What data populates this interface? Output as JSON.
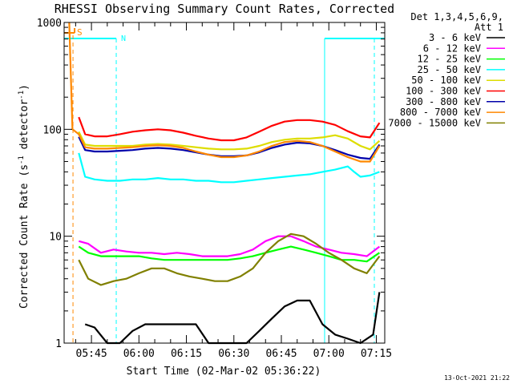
{
  "chart_data": {
    "type": "line",
    "title": "RHESSI Observing Summary Count Rates, Corrected",
    "xlabel": "Start Time (02-Mar-02 05:36:22)",
    "ylabel_main": "Corrected Count Rate (s",
    "ylabel_sup1": "-1",
    "ylabel_mid": " detector",
    "ylabel_sup2": "-1",
    "ylabel_end": ")",
    "yscale": "log",
    "ylim": [
      1,
      1000
    ],
    "y_ticks": [
      {
        "v": 1,
        "label": "1"
      },
      {
        "v": 10,
        "label": "10"
      },
      {
        "v": 100,
        "label": "100"
      },
      {
        "v": 1000,
        "label": "1000"
      }
    ],
    "xlim": [
      "05:36:22",
      "07:17:40"
    ],
    "x_ticks": [
      "05:45",
      "06:00",
      "06:15",
      "06:30",
      "06:45",
      "07:00",
      "07:15"
    ],
    "legend": {
      "position": "right",
      "header_line1": "Det 1,3,4,5,6,9,",
      "header_line2": "Att 1"
    },
    "annotations": {
      "saa_label": "S",
      "night_label": "N",
      "saa_end": "05:39:10",
      "night_intervals": [
        [
          "05:36:22",
          "05:52:50"
        ],
        [
          "06:58:40",
          "07:17:40"
        ]
      ]
    },
    "series": [
      {
        "name": "3 - 6 keV",
        "color": "#000000",
        "x": [
          "05:43",
          "05:46",
          "05:50",
          "05:54",
          "05:58",
          "06:02",
          "06:06",
          "06:10",
          "06:14",
          "06:18",
          "06:22",
          "06:26",
          "06:30",
          "06:34",
          "06:38",
          "06:42",
          "06:46",
          "06:50",
          "06:54",
          "06:58",
          "07:02",
          "07:06",
          "07:10",
          "07:14",
          "07:16"
        ],
        "y": [
          1.5,
          1.4,
          1.0,
          1.0,
          1.3,
          1.5,
          1.5,
          1.5,
          1.5,
          1.5,
          1.0,
          1.0,
          1.0,
          1.0,
          1.3,
          1.7,
          2.2,
          2.5,
          2.5,
          1.5,
          1.2,
          1.1,
          1.0,
          1.2,
          3.0
        ]
      },
      {
        "name": "6 - 12 keV",
        "color": "#ff00ff",
        "x": [
          "05:41",
          "05:44",
          "05:48",
          "05:52",
          "05:56",
          "06:00",
          "06:04",
          "06:08",
          "06:12",
          "06:16",
          "06:20",
          "06:24",
          "06:28",
          "06:32",
          "06:36",
          "06:40",
          "06:44",
          "06:48",
          "06:52",
          "06:56",
          "07:00",
          "07:04",
          "07:08",
          "07:12",
          "07:16"
        ],
        "y": [
          9.0,
          8.5,
          7.0,
          7.5,
          7.2,
          7.0,
          7.0,
          6.8,
          7.0,
          6.8,
          6.5,
          6.5,
          6.5,
          6.8,
          7.5,
          9.0,
          10.0,
          10.0,
          9.0,
          8.0,
          7.5,
          7.0,
          6.8,
          6.5,
          8.0
        ]
      },
      {
        "name": "12 - 25 keV",
        "color": "#00ff00",
        "x": [
          "05:41",
          "05:44",
          "05:48",
          "05:52",
          "05:56",
          "06:00",
          "06:04",
          "06:08",
          "06:12",
          "06:16",
          "06:20",
          "06:24",
          "06:28",
          "06:32",
          "06:36",
          "06:40",
          "06:44",
          "06:48",
          "06:52",
          "06:56",
          "07:00",
          "07:04",
          "07:08",
          "07:12",
          "07:16"
        ],
        "y": [
          8.0,
          7.0,
          6.5,
          6.5,
          6.5,
          6.5,
          6.2,
          6.0,
          6.0,
          6.0,
          6.0,
          6.0,
          6.0,
          6.2,
          6.5,
          7.0,
          7.5,
          8.0,
          7.5,
          7.0,
          6.5,
          6.0,
          6.0,
          5.8,
          7.0
        ]
      },
      {
        "name": "25 - 50 keV",
        "color": "#00ffff",
        "x": [
          "05:41",
          "05:43",
          "05:46",
          "05:50",
          "05:54",
          "05:58",
          "06:02",
          "06:06",
          "06:10",
          "06:14",
          "06:18",
          "06:22",
          "06:26",
          "06:30",
          "06:34",
          "06:38",
          "06:42",
          "06:46",
          "06:50",
          "06:54",
          "06:58",
          "07:02",
          "07:06",
          "07:08",
          "07:10",
          "07:13",
          "07:16"
        ],
        "y": [
          60,
          36,
          34,
          33,
          33,
          34,
          34,
          35,
          34,
          34,
          33,
          33,
          32,
          32,
          33,
          34,
          35,
          36,
          37,
          38,
          40,
          42,
          45,
          40,
          36,
          37,
          40
        ]
      },
      {
        "name": "50 - 100 keV",
        "color": "#dddd00",
        "x": [
          "05:41",
          "05:43",
          "05:46",
          "05:50",
          "05:54",
          "05:58",
          "06:02",
          "06:06",
          "06:10",
          "06:14",
          "06:18",
          "06:22",
          "06:26",
          "06:30",
          "06:34",
          "06:38",
          "06:42",
          "06:46",
          "06:50",
          "06:54",
          "06:58",
          "07:02",
          "07:06",
          "07:10",
          "07:13",
          "07:16"
        ],
        "y": [
          95,
          72,
          70,
          70,
          70,
          70,
          72,
          73,
          72,
          70,
          68,
          66,
          65,
          65,
          66,
          70,
          76,
          80,
          82,
          82,
          84,
          88,
          82,
          70,
          65,
          78
        ]
      },
      {
        "name": "100 - 300 keV",
        "color": "#ff0000",
        "x": [
          "05:41",
          "05:43",
          "05:46",
          "05:50",
          "05:54",
          "05:58",
          "06:02",
          "06:06",
          "06:10",
          "06:14",
          "06:18",
          "06:22",
          "06:26",
          "06:30",
          "06:34",
          "06:38",
          "06:42",
          "06:46",
          "06:50",
          "06:54",
          "06:58",
          "07:02",
          "07:06",
          "07:10",
          "07:13",
          "07:16"
        ],
        "y": [
          130,
          90,
          86,
          86,
          90,
          95,
          98,
          100,
          98,
          93,
          87,
          82,
          79,
          79,
          84,
          95,
          108,
          118,
          122,
          122,
          118,
          110,
          96,
          86,
          84,
          115
        ]
      },
      {
        "name": "300 - 800 keV",
        "color": "#0000aa",
        "x": [
          "05:41",
          "05:43",
          "05:46",
          "05:50",
          "05:54",
          "05:58",
          "06:02",
          "06:06",
          "06:10",
          "06:14",
          "06:18",
          "06:22",
          "06:26",
          "06:30",
          "06:34",
          "06:38",
          "06:42",
          "06:46",
          "06:50",
          "06:54",
          "06:58",
          "07:02",
          "07:06",
          "07:10",
          "07:13",
          "07:16"
        ],
        "y": [
          85,
          64,
          62,
          62,
          63,
          64,
          66,
          67,
          66,
          64,
          61,
          58,
          56,
          56,
          57,
          61,
          67,
          72,
          75,
          74,
          70,
          64,
          58,
          54,
          53,
          72
        ]
      },
      {
        "name": "800 - 7000 keV",
        "color": "#ff8800",
        "x": [
          "05:38",
          "05:39",
          "05:41",
          "05:43",
          "05:46",
          "05:50",
          "05:54",
          "05:58",
          "06:02",
          "06:06",
          "06:10",
          "06:14",
          "06:18",
          "06:22",
          "06:26",
          "06:30",
          "06:34",
          "06:38",
          "06:42",
          "06:46",
          "06:50",
          "06:54",
          "06:58",
          "07:02",
          "07:06",
          "07:10",
          "07:13",
          "07:16"
        ],
        "y": [
          1000,
          100,
          90,
          68,
          66,
          66,
          67,
          68,
          70,
          71,
          70,
          67,
          62,
          58,
          55,
          55,
          57,
          62,
          70,
          76,
          78,
          76,
          70,
          62,
          55,
          50,
          50,
          70
        ]
      },
      {
        "name": "7000 - 15000 keV",
        "color": "#808000",
        "x": [
          "05:41",
          "05:44",
          "05:48",
          "05:52",
          "05:56",
          "06:00",
          "06:04",
          "06:08",
          "06:12",
          "06:16",
          "06:20",
          "06:24",
          "06:28",
          "06:32",
          "06:36",
          "06:40",
          "06:44",
          "06:48",
          "06:52",
          "06:56",
          "07:00",
          "07:04",
          "07:08",
          "07:12",
          "07:16"
        ],
        "y": [
          6.0,
          4.0,
          3.5,
          3.8,
          4.0,
          4.5,
          5.0,
          5.0,
          4.5,
          4.2,
          4.0,
          3.8,
          3.8,
          4.2,
          5.0,
          7.0,
          9.0,
          10.5,
          10.0,
          8.5,
          7.0,
          6.0,
          5.0,
          4.5,
          6.5
        ]
      }
    ]
  },
  "footer": {
    "timestamp": "13-Oct-2021 21:22"
  }
}
